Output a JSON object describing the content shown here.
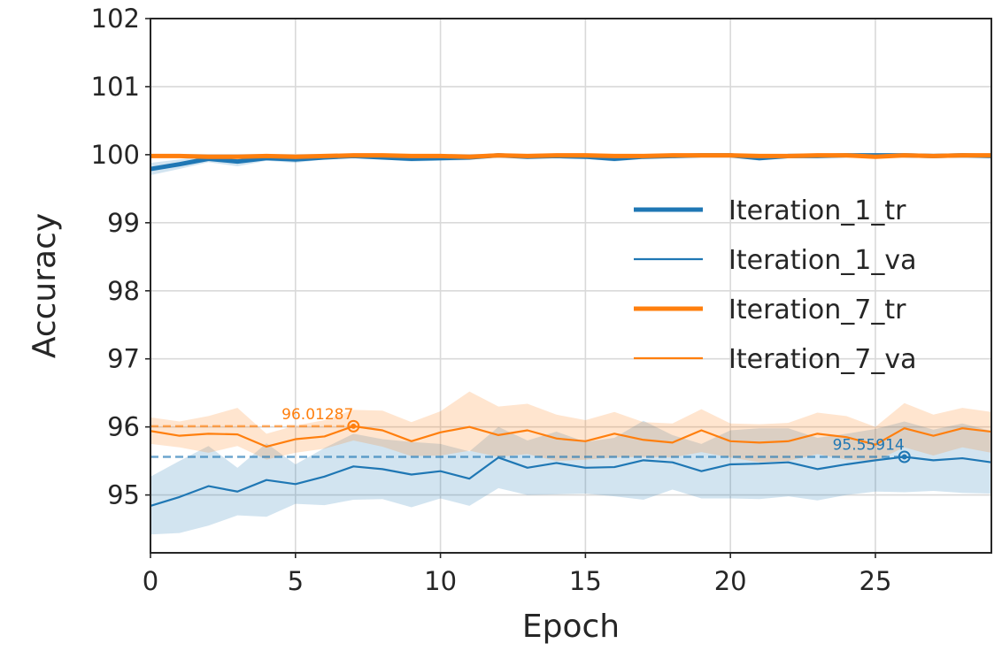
{
  "chart_data": {
    "type": "line",
    "xlabel": "Epoch",
    "ylabel": "Accuracy",
    "xlim": [
      0,
      29
    ],
    "ylim": [
      94.15,
      102
    ],
    "xticks": [
      0,
      5,
      10,
      15,
      20,
      25
    ],
    "yticks": [
      95,
      96,
      97,
      98,
      99,
      100,
      101,
      102
    ],
    "grid": true,
    "legend_position": "center-right",
    "x": [
      0,
      1,
      2,
      3,
      4,
      5,
      6,
      7,
      8,
      9,
      10,
      11,
      12,
      13,
      14,
      15,
      16,
      17,
      18,
      19,
      20,
      21,
      22,
      23,
      24,
      25,
      26,
      27,
      28,
      29
    ],
    "series": [
      {
        "name": "Iteration_1_tr",
        "color": "#1f77b4",
        "style": "thick",
        "values": [
          99.79,
          99.86,
          99.94,
          99.9,
          99.95,
          99.93,
          99.96,
          99.98,
          99.96,
          99.94,
          99.95,
          99.96,
          99.99,
          99.97,
          99.98,
          99.97,
          99.94,
          99.97,
          99.98,
          99.99,
          99.99,
          99.95,
          99.98,
          99.98,
          99.99,
          99.99,
          99.99,
          99.98,
          99.99,
          99.98
        ],
        "band_lower": [
          99.7,
          99.79,
          99.89,
          99.83,
          99.91,
          99.88,
          99.93,
          99.96,
          99.93,
          99.9,
          99.91,
          99.92,
          99.97,
          99.94,
          99.96,
          99.94,
          99.9,
          99.94,
          99.96,
          99.98,
          99.97,
          99.91,
          99.96,
          99.96,
          99.97,
          99.97,
          99.97,
          99.96,
          99.98,
          99.96
        ],
        "band_upper": [
          99.88,
          99.93,
          99.99,
          99.97,
          99.99,
          99.98,
          99.99,
          100.0,
          99.99,
          99.98,
          99.99,
          100.0,
          100.0,
          100.0,
          100.0,
          100.0,
          99.98,
          100.0,
          100.0,
          100.0,
          100.0,
          99.99,
          100.0,
          100.0,
          100.0,
          100.0,
          100.0,
          100.0,
          100.0,
          100.0
        ]
      },
      {
        "name": "Iteration_1_va",
        "color": "#1f77b4",
        "style": "thin",
        "values": [
          94.84,
          94.97,
          95.13,
          95.05,
          95.22,
          95.16,
          95.27,
          95.42,
          95.38,
          95.3,
          95.35,
          95.24,
          95.55,
          95.4,
          95.47,
          95.4,
          95.41,
          95.51,
          95.48,
          95.35,
          95.45,
          95.46,
          95.48,
          95.38,
          95.45,
          95.51,
          95.56,
          95.51,
          95.54,
          95.48
        ],
        "band_lower": [
          94.42,
          94.44,
          94.55,
          94.7,
          94.68,
          94.87,
          94.85,
          94.93,
          94.94,
          94.82,
          94.95,
          94.84,
          95.1,
          95.0,
          95.01,
          95.02,
          94.98,
          94.93,
          95.08,
          94.95,
          94.95,
          94.94,
          94.98,
          94.92,
          95.0,
          95.05,
          95.04,
          95.06,
          95.03,
          95.02
        ],
        "band_upper": [
          95.27,
          95.5,
          95.72,
          95.4,
          95.76,
          95.45,
          95.69,
          95.9,
          95.82,
          95.78,
          95.75,
          95.64,
          96.0,
          95.8,
          95.93,
          95.78,
          95.84,
          96.09,
          95.88,
          95.75,
          95.95,
          95.98,
          95.98,
          95.84,
          95.9,
          95.97,
          96.08,
          95.96,
          96.05,
          95.94
        ],
        "best": {
          "x": 26,
          "y": 95.56,
          "label": "95.55914"
        }
      },
      {
        "name": "Iteration_7_tr",
        "color": "#ff7f0e",
        "style": "thick",
        "values": [
          99.98,
          99.98,
          99.97,
          99.97,
          99.98,
          99.97,
          99.98,
          99.99,
          99.99,
          99.98,
          99.98,
          99.97,
          99.99,
          99.98,
          99.99,
          99.99,
          99.98,
          99.98,
          99.99,
          99.99,
          99.99,
          99.98,
          99.98,
          99.99,
          99.99,
          99.97,
          99.99,
          99.98,
          99.99,
          99.99
        ],
        "band_lower": [
          99.96,
          99.96,
          99.95,
          99.95,
          99.96,
          99.95,
          99.96,
          99.97,
          99.97,
          99.96,
          99.96,
          99.95,
          99.97,
          99.96,
          99.97,
          99.97,
          99.96,
          99.96,
          99.97,
          99.97,
          99.97,
          99.96,
          99.96,
          99.97,
          99.97,
          99.95,
          99.97,
          99.96,
          99.97,
          99.97
        ],
        "band_upper": [
          100.0,
          100.0,
          99.99,
          99.99,
          100.0,
          99.99,
          100.0,
          100.0,
          100.0,
          100.0,
          100.0,
          99.99,
          100.0,
          100.0,
          100.0,
          100.0,
          100.0,
          100.0,
          100.0,
          100.0,
          100.0,
          100.0,
          100.0,
          100.0,
          100.0,
          99.99,
          100.0,
          100.0,
          100.0,
          100.0
        ],
        "best": null
      },
      {
        "name": "Iteration_7_va",
        "color": "#ff7f0e",
        "style": "thin",
        "values": [
          95.94,
          95.87,
          95.9,
          95.89,
          95.71,
          95.82,
          95.86,
          96.01,
          95.95,
          95.79,
          95.92,
          96.0,
          95.88,
          95.95,
          95.83,
          95.79,
          95.9,
          95.81,
          95.77,
          95.95,
          95.79,
          95.77,
          95.79,
          95.9,
          95.85,
          95.74,
          95.98,
          95.87,
          95.98,
          95.93
        ],
        "band_lower": [
          95.75,
          95.7,
          95.62,
          95.72,
          95.52,
          95.62,
          95.68,
          95.8,
          95.71,
          95.57,
          95.58,
          95.65,
          95.56,
          95.6,
          95.5,
          95.52,
          95.55,
          95.56,
          95.55,
          95.63,
          95.55,
          95.48,
          95.5,
          95.6,
          95.52,
          95.5,
          95.7,
          95.58,
          95.7,
          95.62
        ],
        "band_upper": [
          96.14,
          96.08,
          96.16,
          96.28,
          95.9,
          96.02,
          96.1,
          96.25,
          96.24,
          96.07,
          96.23,
          96.52,
          96.3,
          96.34,
          96.18,
          96.1,
          96.22,
          96.07,
          96.05,
          96.26,
          96.05,
          96.04,
          96.06,
          96.21,
          96.16,
          96.0,
          96.35,
          96.18,
          96.28,
          96.22
        ],
        "best": {
          "x": 7,
          "y": 96.01,
          "label": "96.01287"
        }
      }
    ]
  }
}
